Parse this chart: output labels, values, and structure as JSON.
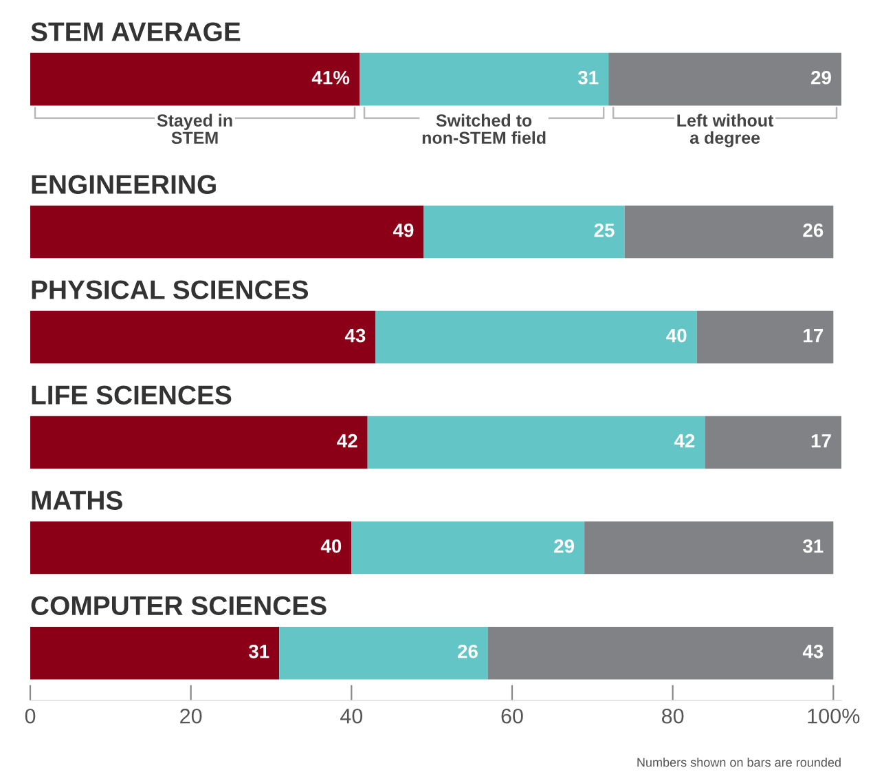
{
  "chart_data": {
    "type": "bar",
    "orientation": "horizontal",
    "stacked": true,
    "categories": [
      "STEM AVERAGE",
      "ENGINEERING",
      "PHYSICAL SCIENCES",
      "LIFE SCIENCES",
      "MATHS",
      "COMPUTER SCIENCES"
    ],
    "series": [
      {
        "name": "Stayed in\nSTEM",
        "color": "#8b0016",
        "values": [
          41,
          49,
          43,
          42,
          40,
          31
        ],
        "value_labels": [
          "41%",
          "49",
          "43",
          "42",
          "40",
          "31"
        ]
      },
      {
        "name": "Switched to\nnon-STEM field",
        "color": "#63c5c5",
        "values": [
          31,
          25,
          40,
          42,
          29,
          26
        ],
        "value_labels": [
          "31",
          "25",
          "40",
          "42",
          "29",
          "26"
        ]
      },
      {
        "name": "Left without\na degree",
        "color": "#808285",
        "values": [
          29,
          26,
          17,
          17,
          31,
          43
        ],
        "value_labels": [
          "29",
          "26",
          "17",
          "17",
          "31",
          "43"
        ]
      }
    ],
    "xlim": [
      0,
      101
    ],
    "xticks": [
      0,
      20,
      40,
      60,
      80,
      {
        "value": 100,
        "label": "100%"
      }
    ],
    "grid": false,
    "annotations": [
      "Numbers shown on bars are rounded"
    ]
  }
}
